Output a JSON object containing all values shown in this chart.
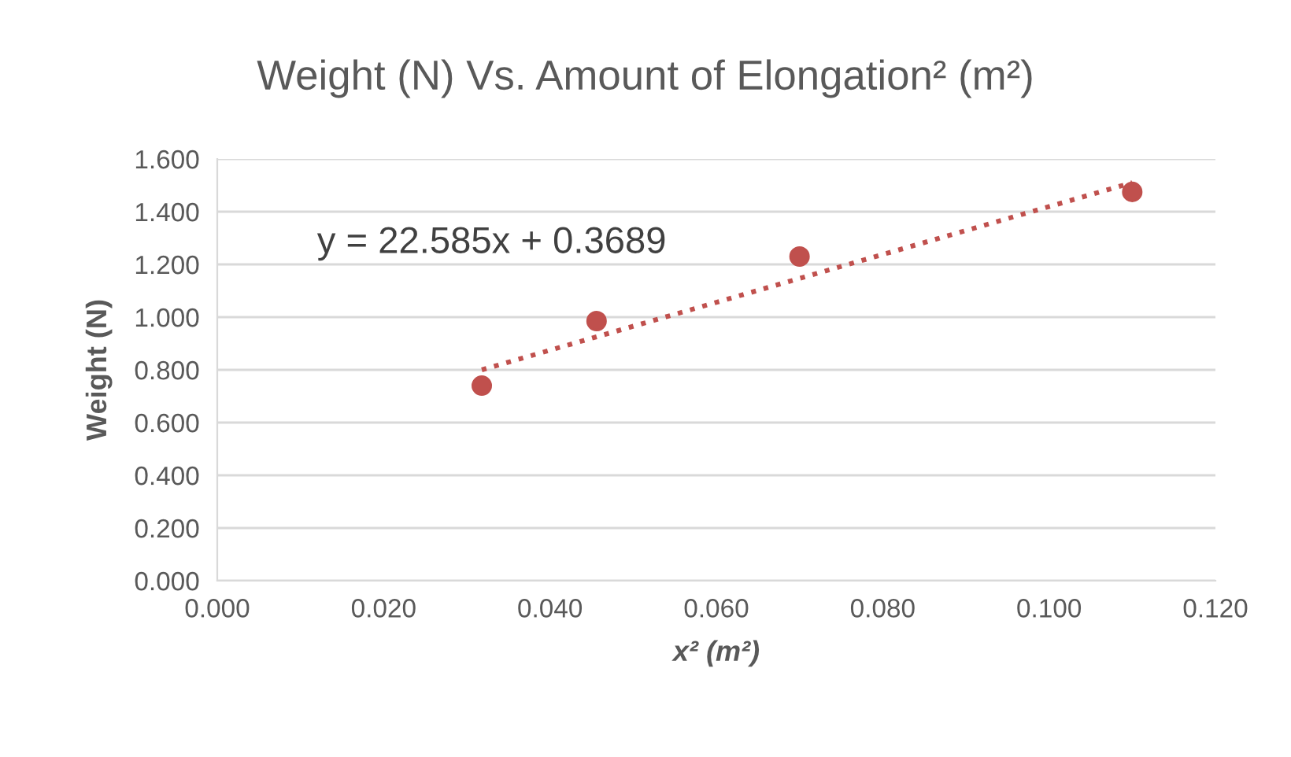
{
  "chart_data": {
    "type": "scatter",
    "title": "Weight (N) Vs. Amount of Elongation² (m²)",
    "xlabel": "x² (m²)",
    "ylabel": "Weight (N)",
    "series": [
      {
        "color": "#c0504d",
        "x": [
          0.0318,
          0.0456,
          0.07,
          0.11
        ],
        "values": [
          0.74,
          0.985,
          1.23,
          1.475
        ]
      },
      {
        "type": "line",
        "color": "#c0504d",
        "line_style": "dotted",
        "marker": "none",
        "x": [
          0.0318,
          0.11
        ],
        "values": [
          0.8,
          1.51
        ]
      }
    ],
    "annotations": [
      "y = 22.585x + 0.3689"
    ],
    "xlim": [
      0,
      0.12
    ],
    "xticks": [
      {
        "value": 0,
        "label": "0.000"
      },
      {
        "value": 0.02,
        "label": "0.020"
      },
      {
        "value": 0.04,
        "label": "0.040"
      },
      {
        "value": 0.06,
        "label": "0.060"
      },
      {
        "value": 0.08,
        "label": "0.080"
      },
      {
        "value": 0.1,
        "label": "0.100"
      },
      {
        "value": 0.12,
        "label": "0.120"
      }
    ],
    "ylim": [
      0,
      1.6
    ],
    "yticks": [
      {
        "value": 0,
        "label": "0.000"
      },
      {
        "value": 0.2,
        "label": "0.200"
      },
      {
        "value": 0.4,
        "label": "0.400"
      },
      {
        "value": 0.6,
        "label": "0.600"
      },
      {
        "value": 0.8,
        "label": "0.800"
      },
      {
        "value": 1.0,
        "label": "1.000"
      },
      {
        "value": 1.2,
        "label": "1.200"
      },
      {
        "value": 1.4,
        "label": "1.400"
      },
      {
        "value": 1.6,
        "label": "1.600"
      }
    ],
    "grid": "y",
    "legend": false,
    "marker": "circle"
  }
}
